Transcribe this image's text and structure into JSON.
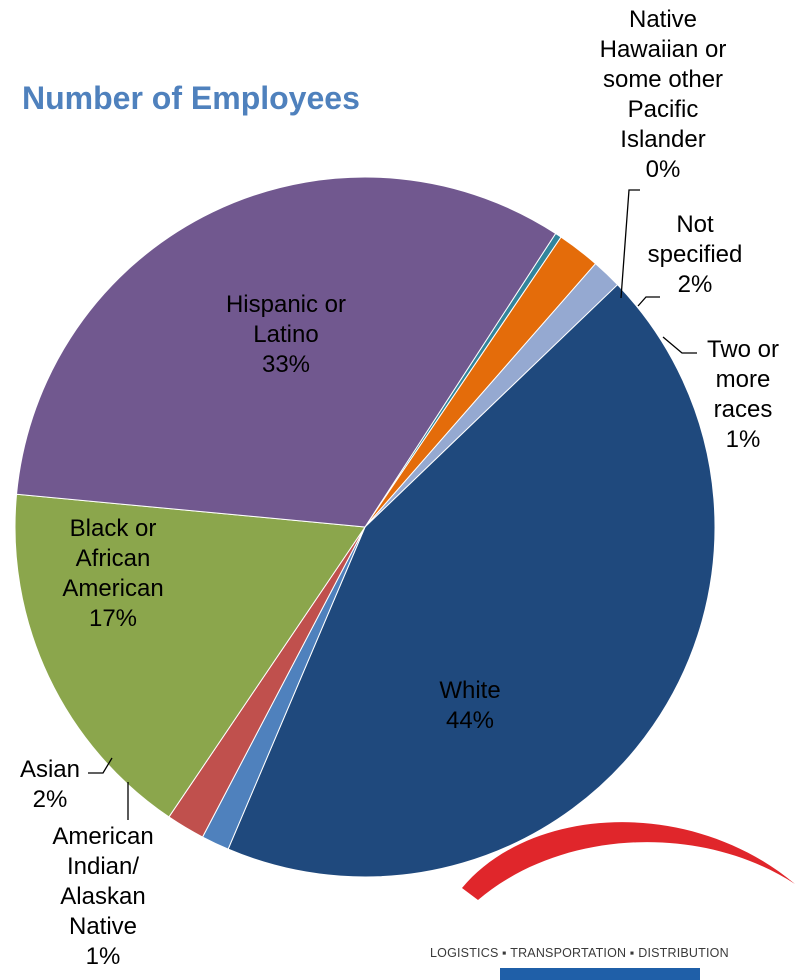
{
  "chart_data": {
    "type": "pie",
    "title": "Number of Employees",
    "start_angle_deg": 33,
    "slices": [
      {
        "name": "Native Hawaiian or some other Pacific Islander",
        "value": 0.3,
        "pct_label": "0%",
        "color": "#31859C",
        "label_lines": [
          "Native",
          "Hawaiian or",
          "some other",
          "Pacific",
          "Islander",
          "0%"
        ]
      },
      {
        "name": "Not specified",
        "value": 2,
        "pct_label": "2%",
        "color": "#E46C0A",
        "label_lines": [
          "Not",
          "specified",
          "2%"
        ]
      },
      {
        "name": "Two or more races",
        "value": 1.4,
        "pct_label": "1%",
        "color": "#95A9D1",
        "label_lines": [
          "Two or",
          "more",
          "races",
          "1%"
        ]
      },
      {
        "name": "White",
        "value": 44,
        "pct_label": "44%",
        "color": "#1F497D",
        "label_lines": [
          "White",
          "44%"
        ]
      },
      {
        "name": "American Indian/ Alaskan Native",
        "value": 1.3,
        "pct_label": "1%",
        "color": "#4F81BD",
        "label_lines": [
          "American",
          "Indian/",
          "Alaskan",
          "Native",
          "1%"
        ]
      },
      {
        "name": "Asian",
        "value": 1.8,
        "pct_label": "2%",
        "color": "#C0504D",
        "label_lines": [
          "Asian",
          "2%"
        ]
      },
      {
        "name": "Black or African American",
        "value": 17.2,
        "pct_label": "17%",
        "color": "#8BA64C",
        "label_lines": [
          "Black or",
          "African",
          "American",
          "17%"
        ]
      },
      {
        "name": "Hispanic or Latino",
        "value": 33,
        "pct_label": "33%",
        "color": "#71588F",
        "label_lines": [
          "Hispanic or",
          "Latino",
          "33%"
        ]
      }
    ]
  },
  "logo": {
    "tagline": "LOGISTICS ▪ TRANSPORTATION ▪ DISTRIBUTION",
    "arc_color": "#E0262B",
    "mark_color": "#1F5FA8"
  }
}
